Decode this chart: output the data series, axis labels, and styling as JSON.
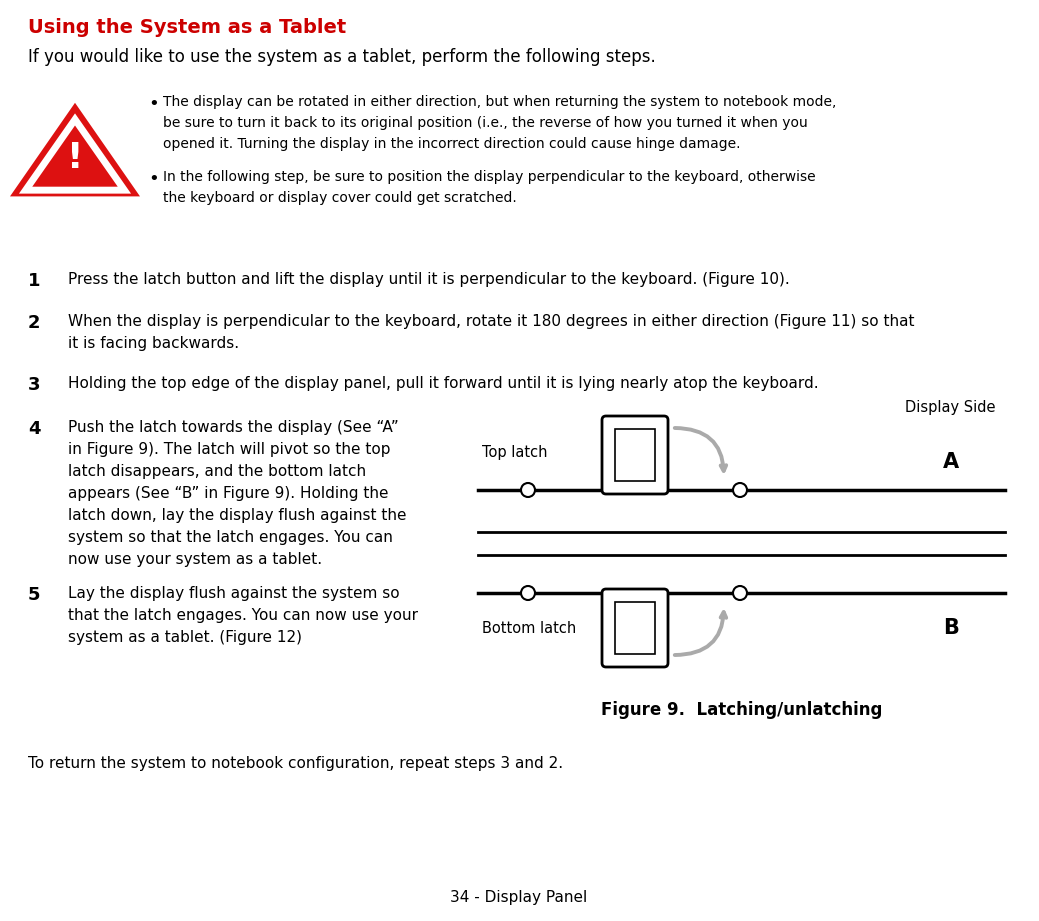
{
  "title": "Using the System as a Tablet",
  "title_color": "#cc0000",
  "bg_color": "#ffffff",
  "intro_text": "If you would like to use the system as a tablet, perform the following steps.",
  "bullet1_line1": "The display can be rotated in either direction, but when returning the system to notebook mode,",
  "bullet1_line2": "be sure to turn it back to its original position (i.e., the reverse of how you turned it when you",
  "bullet1_line3": "opened it. Turning the display in the incorrect direction could cause hinge damage.",
  "bullet2_line1": "In the following step, be sure to position the display perpendicular to the keyboard, otherwise",
  "bullet2_line2": "the keyboard or display cover could get scratched.",
  "step1": "Press the latch button and lift the display until it is perpendicular to the keyboard. (Figure 10).",
  "step2_line1": "When the display is perpendicular to the keyboard, rotate it 180 degrees in either direction (Figure 11) so that",
  "step2_line2": "it is facing backwards.",
  "step3": "Holding the top edge of the display panel, pull it forward until it is lying nearly atop the keyboard.",
  "step4_line1": "Push the latch towards the display (See “A”",
  "step4_line2": "in Figure 9). The latch will pivot so the top",
  "step4_line3": "latch disappears, and the bottom latch",
  "step4_line4": "appears (See “B” in Figure 9). Holding the",
  "step4_line5": "latch down, lay the display flush against the",
  "step4_line6": "system so that the latch engages. You can",
  "step4_line7": "now use your system as a tablet.",
  "step5_line1": "Lay the display flush against the system so",
  "step5_line2": "that the latch engages. You can now use your",
  "step5_line3": "system as a tablet. (Figure 12)",
  "return_text": "To return the system to notebook configuration, repeat steps 3 and 2.",
  "fig_caption": "Figure 9.  Latching/unlatching",
  "label_top_latch": "Top latch",
  "label_bottom_latch": "Bottom latch",
  "label_display_side": "Display Side",
  "label_A": "A",
  "label_B": "B",
  "footer": "34 - Display Panel",
  "text_color": "#000000",
  "arrow_color": "#aaaaaa"
}
